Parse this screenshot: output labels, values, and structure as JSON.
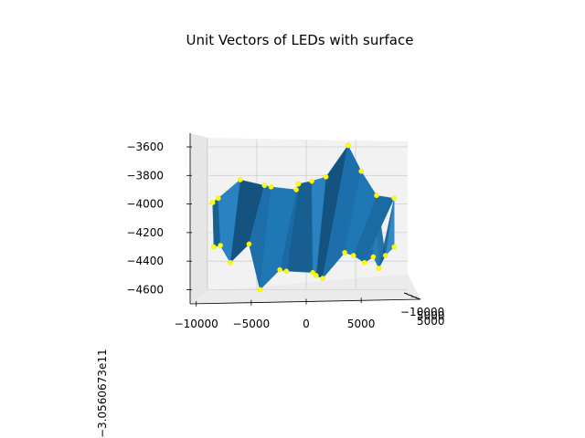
{
  "chart_data": {
    "type": "surface-3d",
    "title": "Unit Vectors of LEDs with surface",
    "view": "near edge-on, looking along the y axis",
    "x_axis": {
      "tick_labels": [
        "−10000",
        "−5000",
        "0",
        "5000"
      ],
      "tick_values": [
        -10000,
        -5000,
        0,
        5000
      ]
    },
    "y_axis": {
      "tick_labels": [
        "−10000",
        "5000",
        "5000"
      ],
      "offset_text": "−3.0560673e11"
    },
    "z_axis": {
      "tick_labels": [
        "−3600",
        "−3800",
        "−4000",
        "−4200",
        "−4400",
        "−4600"
      ],
      "tick_values": [
        -3600,
        -3800,
        -4000,
        -4200,
        -4400,
        -4600
      ],
      "lim": [
        -4700,
        -3500
      ]
    },
    "grid": true,
    "pane_color": "#f2f2f2",
    "surface_color": "#1f77b4",
    "marker_color": "#ffff00",
    "points": [
      {
        "x": -8500,
        "z": -3990
      },
      {
        "x": -8000,
        "z": -3960
      },
      {
        "x": -8400,
        "z": -4300
      },
      {
        "x": -7800,
        "z": -4290
      },
      {
        "x": -6900,
        "z": -4410
      },
      {
        "x": -6000,
        "z": -3830
      },
      {
        "x": -5200,
        "z": -4280
      },
      {
        "x": -3800,
        "z": -3870
      },
      {
        "x": -3200,
        "z": -3880
      },
      {
        "x": -4200,
        "z": -4600
      },
      {
        "x": -2400,
        "z": -4460
      },
      {
        "x": -700,
        "z": -3860
      },
      {
        "x": -1800,
        "z": -4470
      },
      {
        "x": -900,
        "z": -3900
      },
      {
        "x": 500,
        "z": -3840
      },
      {
        "x": 600,
        "z": -4480
      },
      {
        "x": 900,
        "z": -4500
      },
      {
        "x": 1500,
        "z": -4520
      },
      {
        "x": 1800,
        "z": -3810
      },
      {
        "x": 3800,
        "z": -3590
      },
      {
        "x": 3500,
        "z": -4340
      },
      {
        "x": 5000,
        "z": -3770
      },
      {
        "x": 4300,
        "z": -4360
      },
      {
        "x": 5300,
        "z": -4410
      },
      {
        "x": 6100,
        "z": -4370
      },
      {
        "x": 6400,
        "z": -3940
      },
      {
        "x": 6600,
        "z": -4450
      },
      {
        "x": 7200,
        "z": -4360
      },
      {
        "x": 8000,
        "z": -3960
      },
      {
        "x": 8000,
        "z": -4300
      }
    ]
  }
}
